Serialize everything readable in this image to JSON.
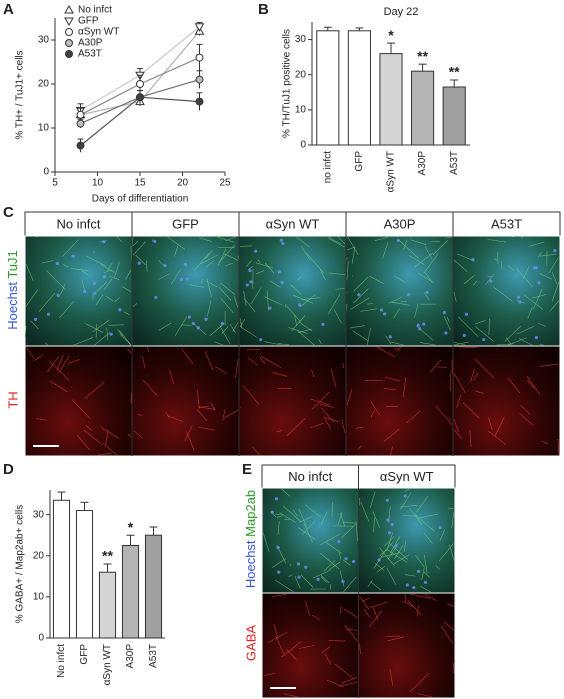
{
  "panel_letters": [
    "A",
    "B",
    "C",
    "D",
    "E"
  ],
  "chart_data": [
    {
      "type": "line",
      "xlabel": "Days of differentiation",
      "ylabel": "% TH+ / TuJ1+ cells",
      "x": [
        8,
        15,
        22
      ],
      "xlim": [
        5,
        25
      ],
      "xticks": [
        5,
        10,
        15,
        20,
        25
      ],
      "ylim": [
        0,
        35
      ],
      "yticks": [
        0,
        10,
        20,
        30
      ],
      "legend": "upper left",
      "series": [
        {
          "name": "No infct",
          "color": "#b0b0b0",
          "marker": "triangle-up",
          "marker_fill": "#ffffff",
          "values": [
            13,
            16,
            32
          ],
          "errors": [
            1,
            1,
            1
          ]
        },
        {
          "name": "GFP",
          "color": "#c8c8c8",
          "marker": "triangle-down",
          "marker_fill": "#ffffff",
          "values": [
            14,
            22,
            33
          ],
          "errors": [
            1.5,
            1.5,
            1
          ]
        },
        {
          "name": "αSyn WT",
          "color": "#8a8a8a",
          "marker": "circle",
          "marker_fill": "#ffffff",
          "values": [
            13,
            20,
            26
          ],
          "errors": [
            1.5,
            2,
            3
          ]
        },
        {
          "name": "A30P",
          "color": "#707070",
          "marker": "circle",
          "marker_fill": "#bdbdbd",
          "values": [
            11,
            17,
            21
          ],
          "errors": [
            1,
            1.5,
            2
          ]
        },
        {
          "name": "A53T",
          "color": "#505050",
          "marker": "circle",
          "marker_fill": "#404040",
          "values": [
            6,
            17,
            16
          ],
          "errors": [
            1.5,
            1.5,
            2
          ]
        }
      ]
    },
    {
      "type": "bar",
      "title": "Day 22",
      "ylabel": "% TH/TuJ1 positive cells",
      "categories": [
        "no infct",
        "GFP",
        "αSyn WT",
        "A30P",
        "A53T"
      ],
      "values": [
        32.5,
        32.5,
        26,
        21,
        16.5
      ],
      "errors": [
        1,
        0.8,
        3,
        2,
        2
      ],
      "significance": [
        null,
        null,
        "*",
        "**",
        "**"
      ],
      "colors": [
        "#ffffff",
        "#ffffff",
        "#d4d4d4",
        "#b4b4b4",
        "#a0a0a0"
      ],
      "ylim": [
        0,
        35
      ],
      "yticks": [
        0,
        10,
        20,
        30
      ]
    },
    {
      "type": "bar",
      "ylabel": "% GABA+ / Map2ab+ cells",
      "categories": [
        "No infct",
        "GFP",
        "αSyn WT",
        "A30P",
        "A53T"
      ],
      "values": [
        33.5,
        31,
        16,
        22.5,
        25
      ],
      "errors": [
        2,
        2,
        2,
        2.5,
        2
      ],
      "significance": [
        null,
        null,
        "**",
        "*",
        null
      ],
      "colors": [
        "#ffffff",
        "#ffffff",
        "#d4d4d4",
        "#b4b4b4",
        "#a0a0a0"
      ],
      "ylim": [
        0,
        36
      ],
      "yticks": [
        0,
        10,
        20,
        30
      ]
    }
  ],
  "panel_c": {
    "columns": [
      "No infct",
      "GFP",
      "αSyn WT",
      "A30P",
      "A53T"
    ],
    "row1": [
      "Hoechst",
      "TuJ1"
    ],
    "row2": "TH"
  },
  "panel_e": {
    "columns": [
      "No infct",
      "αSyn WT"
    ],
    "row1": [
      "Hoechst",
      "Map2ab"
    ],
    "row2": "GABA"
  }
}
